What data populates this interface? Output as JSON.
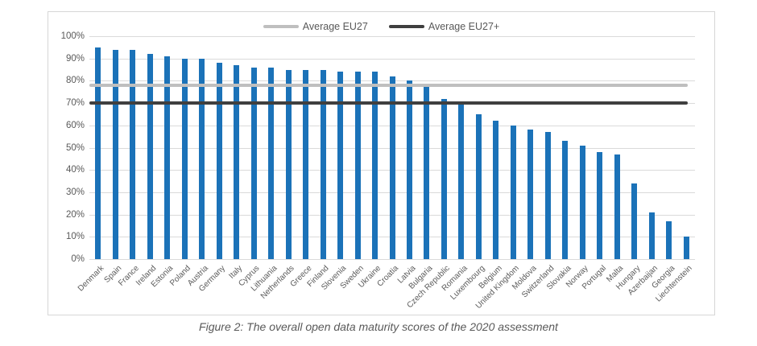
{
  "caption": "Figure 2: The overall open data maturity scores of the 2020 assessment",
  "chart_data": {
    "type": "bar",
    "title": "",
    "xlabel": "",
    "ylabel": "",
    "ylim": [
      0,
      100
    ],
    "y_ticks": [
      "0%",
      "10%",
      "20%",
      "30%",
      "40%",
      "50%",
      "60%",
      "70%",
      "80%",
      "90%",
      "100%"
    ],
    "grid": "horizontal-only",
    "legend_position": "top-center",
    "bar_color": "#1b72b8",
    "categories": [
      "Denmark",
      "Spain",
      "France",
      "Ireland",
      "Estonia",
      "Poland",
      "Austria",
      "Germany",
      "Italy",
      "Cyprus",
      "Lithuania",
      "Netherlands",
      "Greece",
      "Finland",
      "Slovenia",
      "Sweden",
      "Ukraine",
      "Croatia",
      "Latvia",
      "Bulgaria",
      "Czech Republic",
      "Romania",
      "Luxembourg",
      "Belgium",
      "United Kingdom",
      "Moldova",
      "Switzerland",
      "Slovakia",
      "Norway",
      "Portugal",
      "Malta",
      "Hungary",
      "Azerbaijan",
      "Georgia",
      "Liechtenstein"
    ],
    "values": [
      95,
      94,
      94,
      92,
      91,
      90,
      90,
      88,
      87,
      86,
      86,
      85,
      85,
      85,
      84,
      84,
      84,
      82,
      80,
      78,
      72,
      70,
      65,
      62,
      60,
      58,
      57,
      53,
      51,
      48,
      47,
      34,
      21,
      17,
      10
    ],
    "reference_lines": [
      {
        "name": "Average EU27",
        "value": 78,
        "color": "#bfbfbf"
      },
      {
        "name": "Average EU27+",
        "value": 70,
        "color": "#3f3f3f"
      }
    ]
  }
}
